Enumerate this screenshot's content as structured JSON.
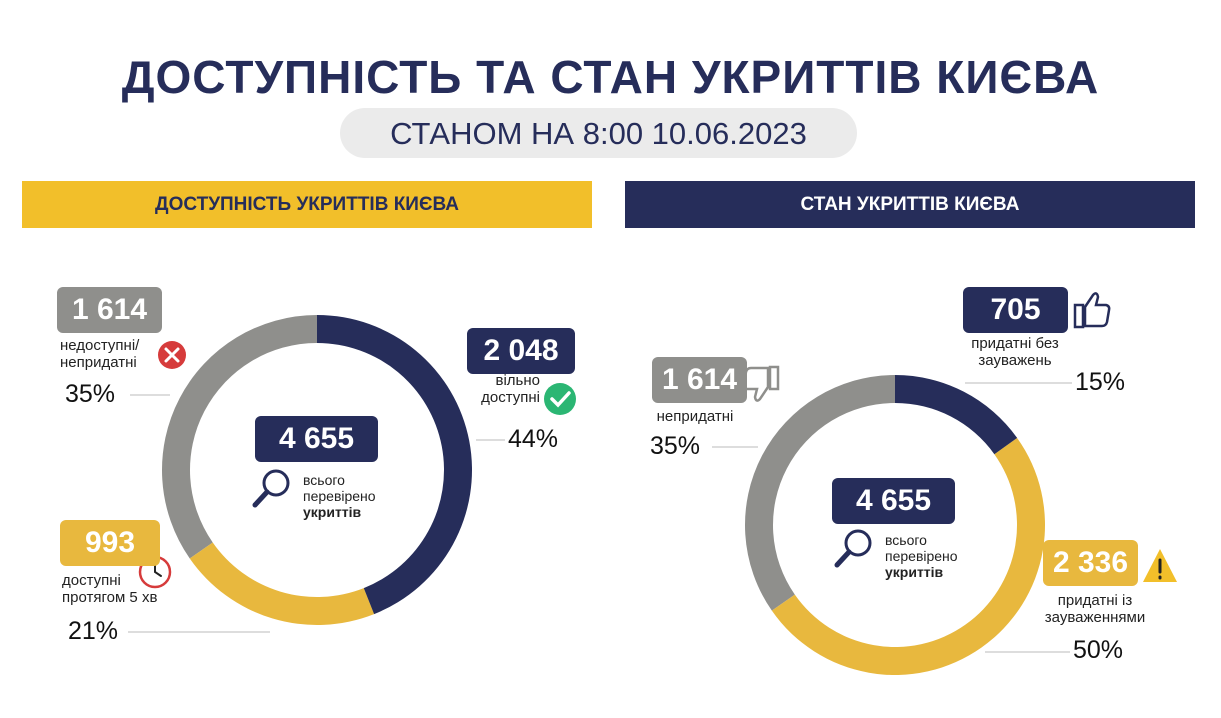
{
  "title": "ДОСТУПНІСТЬ ТА СТАН УКРИТТІВ КИЄВА",
  "subtitle": "СТАНОМ НА 8:00 10.06.2023",
  "chart_data": [
    {
      "type": "donut",
      "title": "ДОСТУПНІСТЬ УКРИТТІВ КИЄВА",
      "categories": [
        "вільно\nдоступні",
        "доступні\nпротягом 5 хв",
        "недоступні/\nнепридатні"
      ],
      "values": [
        2048,
        993,
        1614
      ],
      "value_labels": [
        "2 048",
        "993",
        "1 614"
      ],
      "shares": [
        44,
        21,
        35
      ],
      "share_labels": [
        "44%",
        "21%",
        "35%"
      ],
      "colors": [
        "#262d5a",
        "#e8b83e",
        "#8f8f8c"
      ],
      "total": 4655,
      "total_label": "4 655",
      "total_caption": "всього\nперевірено",
      "total_caption_bold": "укриттів"
    },
    {
      "type": "donut",
      "title": "СТАН УКРИТТІВ КИЄВА",
      "categories": [
        "придатні без\nзауважень",
        "придатні із\nзауваженнями",
        "непридатні"
      ],
      "values": [
        705,
        2336,
        1614
      ],
      "value_labels": [
        "705",
        "2 336",
        "1 614"
      ],
      "shares": [
        15,
        50,
        35
      ],
      "share_labels": [
        "15%",
        "50%",
        "35%"
      ],
      "colors": [
        "#262d5a",
        "#e8b83e",
        "#8f8f8c"
      ],
      "total": 4655,
      "total_label": "4 655",
      "total_caption": "всього\nперевірено",
      "total_caption_bold": "укриттів"
    }
  ]
}
